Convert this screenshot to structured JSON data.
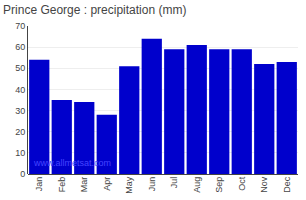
{
  "chart_data": {
    "type": "bar",
    "title": "Prince George : precipitation (mm)",
    "categories": [
      "Jan",
      "Feb",
      "Mar",
      "Apr",
      "May",
      "Jun",
      "Jul",
      "Aug",
      "Sep",
      "Oct",
      "Nov",
      "Dec"
    ],
    "values": [
      54,
      35,
      34,
      28,
      51,
      64,
      59,
      61,
      59,
      59,
      52,
      53
    ],
    "color": "#0000cc",
    "ylim": [
      0,
      70
    ],
    "yticks": [
      0,
      10,
      20,
      30,
      40,
      50,
      60,
      70
    ],
    "grid": true,
    "annotations": [
      "www.allmetsat.com"
    ]
  }
}
